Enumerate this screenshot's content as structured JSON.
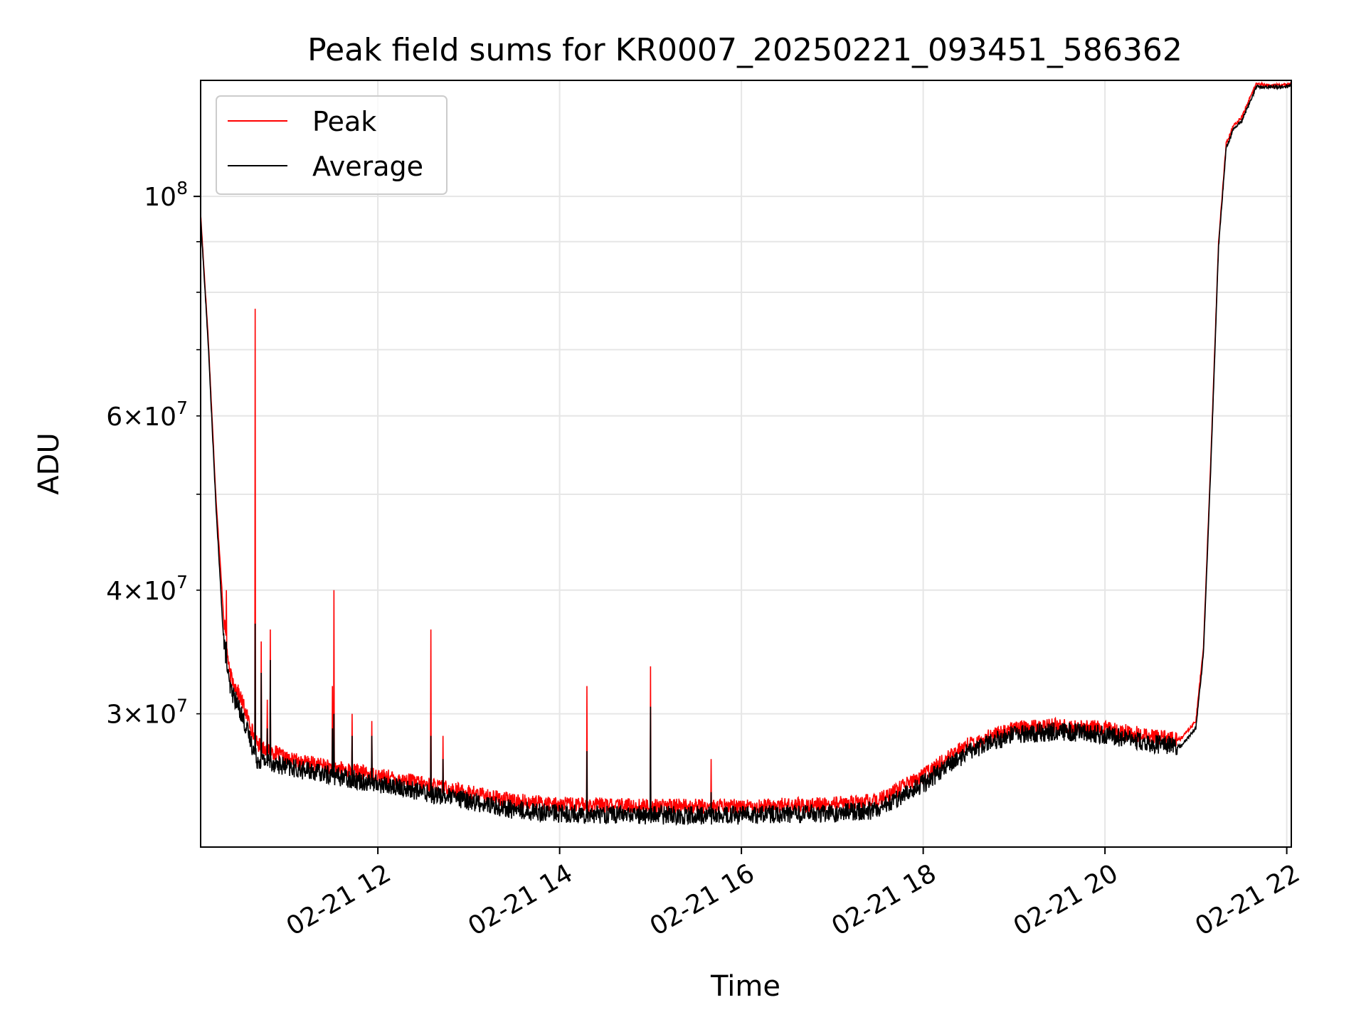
{
  "chart_data": {
    "type": "line",
    "title": "Peak field sums for KR0007_20250221_093451_586362",
    "xlabel": "Time",
    "ylabel": "ADU",
    "x_axis_type": "time",
    "y_scale": "log",
    "xlim": [
      "2025-02-21 10:03",
      "2025-02-21 22:03"
    ],
    "ylim": [
      22000000,
      131000000
    ],
    "grid": true,
    "legend_position": "upper left",
    "x_ticks": [
      {
        "label": "02-21 12",
        "value": "2025-02-21 12:00"
      },
      {
        "label": "02-21 14",
        "value": "2025-02-21 14:00"
      },
      {
        "label": "02-21 16",
        "value": "2025-02-21 16:00"
      },
      {
        "label": "02-21 18",
        "value": "2025-02-21 18:00"
      },
      {
        "label": "02-21 20",
        "value": "2025-02-21 20:00"
      },
      {
        "label": "02-21 22",
        "value": "2025-02-21 22:00"
      }
    ],
    "y_major_ticks": [
      {
        "base": "10",
        "exp": "8",
        "value": 100000000
      }
    ],
    "y_minor_ticks": [
      {
        "mant": "3",
        "base": "10",
        "exp": "7",
        "value": 30000000
      },
      {
        "mant": "4",
        "base": "10",
        "exp": "7",
        "value": 40000000
      },
      {
        "mant": "6",
        "base": "10",
        "exp": "7",
        "value": 60000000
      }
    ],
    "y_minor_unlabeled": [
      50000000,
      70000000,
      80000000,
      90000000
    ],
    "series": [
      {
        "name": "Peak",
        "color": "#ff0000",
        "x": [
          "2025-02-21 10:03",
          "2025-02-21 10:08",
          "2025-02-21 10:13",
          "2025-02-21 10:18",
          "2025-02-21 10:22",
          "2025-02-21 10:30",
          "2025-02-21 10:40",
          "2025-02-21 10:50",
          "2025-02-21 11:00",
          "2025-02-21 11:30",
          "2025-02-21 12:00",
          "2025-02-21 12:30",
          "2025-02-21 13:00",
          "2025-02-21 13:30",
          "2025-02-21 14:00",
          "2025-02-21 15:00",
          "2025-02-21 16:00",
          "2025-02-21 17:00",
          "2025-02-21 17:30",
          "2025-02-21 18:00",
          "2025-02-21 18:30",
          "2025-02-21 19:00",
          "2025-02-21 19:30",
          "2025-02-21 20:00",
          "2025-02-21 20:30",
          "2025-02-21 20:50",
          "2025-02-21 21:00",
          "2025-02-21 21:05",
          "2025-02-21 21:10",
          "2025-02-21 21:15",
          "2025-02-21 21:20",
          "2025-02-21 21:25",
          "2025-02-21 21:30",
          "2025-02-21 21:35",
          "2025-02-21 21:40",
          "2025-02-21 21:50",
          "2025-02-21 22:00",
          "2025-02-21 22:03"
        ],
        "values": [
          96000000,
          72000000,
          50000000,
          38000000,
          33000000,
          31000000,
          28000000,
          27500000,
          27000000,
          26500000,
          26000000,
          25500000,
          25000000,
          24500000,
          24300000,
          24200000,
          24200000,
          24300000,
          24500000,
          26000000,
          28000000,
          29000000,
          29200000,
          29000000,
          28500000,
          28300000,
          29500000,
          35000000,
          55000000,
          90000000,
          113000000,
          118000000,
          120000000,
          125000000,
          130000000,
          129500000,
          129500000,
          130000000
        ]
      },
      {
        "name": "Average",
        "color": "#000000",
        "x": [
          "2025-02-21 10:03",
          "2025-02-21 10:08",
          "2025-02-21 10:13",
          "2025-02-21 10:18",
          "2025-02-21 10:22",
          "2025-02-21 10:30",
          "2025-02-21 10:40",
          "2025-02-21 10:50",
          "2025-02-21 11:00",
          "2025-02-21 11:30",
          "2025-02-21 12:00",
          "2025-02-21 12:30",
          "2025-02-21 13:00",
          "2025-02-21 13:30",
          "2025-02-21 14:00",
          "2025-02-21 15:00",
          "2025-02-21 16:00",
          "2025-02-21 17:00",
          "2025-02-21 17:30",
          "2025-02-21 18:00",
          "2025-02-21 18:30",
          "2025-02-21 19:00",
          "2025-02-21 19:30",
          "2025-02-21 20:00",
          "2025-02-21 20:30",
          "2025-02-21 20:50",
          "2025-02-21 21:00",
          "2025-02-21 21:05",
          "2025-02-21 21:10",
          "2025-02-21 21:15",
          "2025-02-21 21:20",
          "2025-02-21 21:25",
          "2025-02-21 21:30",
          "2025-02-21 21:35",
          "2025-02-21 21:40",
          "2025-02-21 21:50",
          "2025-02-21 22:00",
          "2025-02-21 22:03"
        ],
        "values": [
          95000000,
          71000000,
          49000000,
          36000000,
          32000000,
          30000000,
          27000000,
          26800000,
          26500000,
          26000000,
          25500000,
          25000000,
          24500000,
          24000000,
          23800000,
          23700000,
          23700000,
          23800000,
          24000000,
          25500000,
          27500000,
          28600000,
          28800000,
          28600000,
          28000000,
          27800000,
          29000000,
          34500000,
          54000000,
          89000000,
          112000000,
          117000000,
          119000000,
          124000000,
          129000000,
          129000000,
          129000000,
          129500000
        ]
      }
    ],
    "spikes": [
      {
        "x": "2025-02-21 10:20",
        "peak": 40000000,
        "average": 35500000
      },
      {
        "x": "2025-02-21 10:39",
        "peak": 77000000,
        "average": 37000000
      },
      {
        "x": "2025-02-21 10:43",
        "peak": 35500000,
        "average": 33000000
      },
      {
        "x": "2025-02-21 10:47",
        "peak": 31000000,
        "average": 29000000
      },
      {
        "x": "2025-02-21 10:49",
        "peak": 36500000,
        "average": 34000000
      },
      {
        "x": "2025-02-21 11:30",
        "peak": 32000000,
        "average": 29000000
      },
      {
        "x": "2025-02-21 11:31",
        "peak": 40000000,
        "average": 30000000
      },
      {
        "x": "2025-02-21 11:43",
        "peak": 30000000,
        "average": 28500000
      },
      {
        "x": "2025-02-21 11:56",
        "peak": 29500000,
        "average": 28500000
      },
      {
        "x": "2025-02-21 12:35",
        "peak": 36500000,
        "average": 28500000
      },
      {
        "x": "2025-02-21 12:43",
        "peak": 28500000,
        "average": 27000000
      },
      {
        "x": "2025-02-21 14:18",
        "peak": 32000000,
        "average": 27500000
      },
      {
        "x": "2025-02-21 15:00",
        "peak": 33500000,
        "average": 30500000
      },
      {
        "x": "2025-02-21 15:40",
        "peak": 27000000,
        "average": 25000000
      }
    ]
  }
}
